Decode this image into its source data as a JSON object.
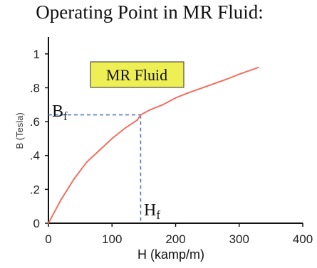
{
  "chart_data": {
    "type": "line",
    "title": "Operating Point in MR Fluid:",
    "xlabel": "H (kamp/m)",
    "ylabel": "B (Tesla)",
    "xlim": [
      0,
      400
    ],
    "ylim": [
      0,
      1.1
    ],
    "x_ticks": [
      {
        "value": 0,
        "label": "0"
      },
      {
        "value": 100,
        "label": "100"
      },
      {
        "value": 200,
        "label": "200"
      },
      {
        "value": 300,
        "label": "300"
      },
      {
        "value": 400,
        "label": "400"
      }
    ],
    "y_ticks": [
      {
        "value": 0,
        "label": "0"
      },
      {
        "value": 0.2,
        "label": ".2"
      },
      {
        "value": 0.4,
        "label": ".4"
      },
      {
        "value": 0.6,
        "label": ".6"
      },
      {
        "value": 0.8,
        "label": ".8"
      },
      {
        "value": 1.0,
        "label": "1"
      }
    ],
    "series": [
      {
        "color": "#f07060",
        "x": [
          0,
          20,
          40,
          60,
          80,
          100,
          120,
          140,
          145,
          160,
          180,
          200,
          220,
          250,
          280,
          300,
          330
        ],
        "y": [
          0,
          0.14,
          0.26,
          0.36,
          0.43,
          0.5,
          0.56,
          0.61,
          0.64,
          0.67,
          0.7,
          0.74,
          0.77,
          0.81,
          0.85,
          0.88,
          0.92
        ]
      }
    ],
    "operating_point": {
      "x": 145,
      "y": 0.64,
      "color": "#5577cc"
    },
    "annotations": {
      "b_main": "B",
      "b_sub": "f",
      "h_main": "H",
      "h_sub": "f",
      "box_label": "MR Fluid",
      "box_color": "#eeee55"
    },
    "grid": false
  }
}
